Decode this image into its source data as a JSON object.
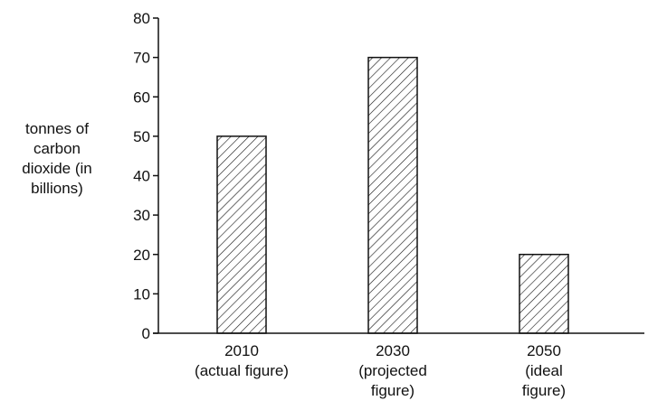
{
  "chart_data": {
    "type": "bar",
    "title": "",
    "xlabel": "",
    "ylabel_lines": [
      "tonnes of",
      "carbon",
      "dioxide (in",
      "billions)"
    ],
    "categories": [
      [
        "2010",
        "(actual figure)"
      ],
      [
        "2030",
        "(projected",
        "figure)"
      ],
      [
        "2050",
        "(ideal",
        "figure)"
      ]
    ],
    "values": [
      50,
      70,
      20
    ],
    "ylim": [
      0,
      80
    ],
    "yticks": [
      0,
      10,
      20,
      30,
      40,
      50,
      60,
      70,
      80
    ],
    "bar_pattern": "diagonal-hatch",
    "bar_color": "#111111",
    "grid": false,
    "legend": "none"
  }
}
